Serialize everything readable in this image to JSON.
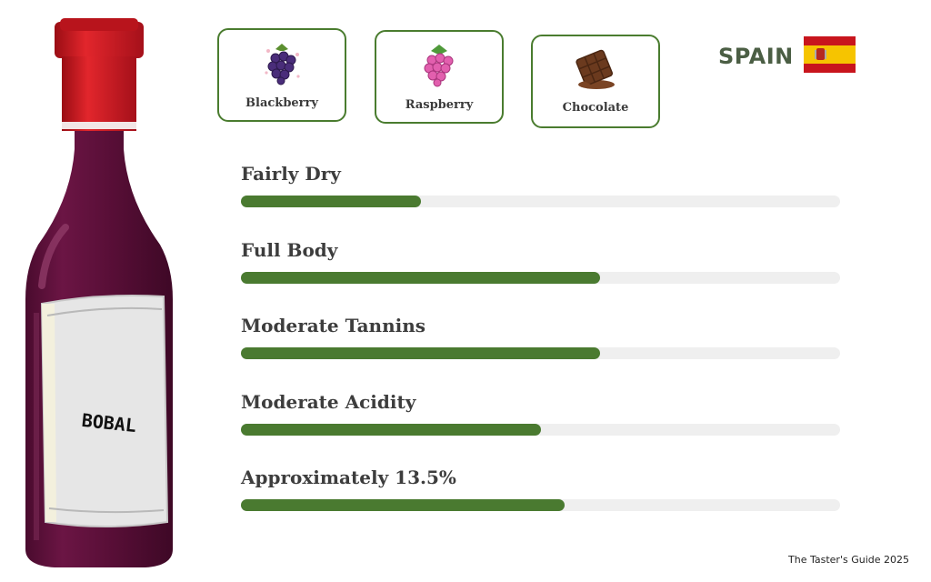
{
  "wine": {
    "label": "BOBAL",
    "country": "SPAIN",
    "bottle_color": "#5a0f38",
    "capsule_color": "#c8151d"
  },
  "flavors": [
    {
      "label": "Blackberry",
      "icon": "blackberry-icon"
    },
    {
      "label": "Raspberry",
      "icon": "raspberry-icon"
    },
    {
      "label": "Chocolate",
      "icon": "chocolate-icon"
    }
  ],
  "attributes": [
    {
      "label": "Fairly Dry",
      "level": 0.3
    },
    {
      "label": "Full Body",
      "level": 0.6
    },
    {
      "label": "Moderate Tannins",
      "level": 0.6
    },
    {
      "label": "Moderate Acidity",
      "level": 0.5
    },
    {
      "label": "Approximately 13.5%",
      "level": 0.54
    }
  ],
  "colors": {
    "accent": "#4a7a30",
    "track": "#efefef",
    "card_border": "#4a7c2f"
  },
  "footer": "The Taster's Guide 2025"
}
